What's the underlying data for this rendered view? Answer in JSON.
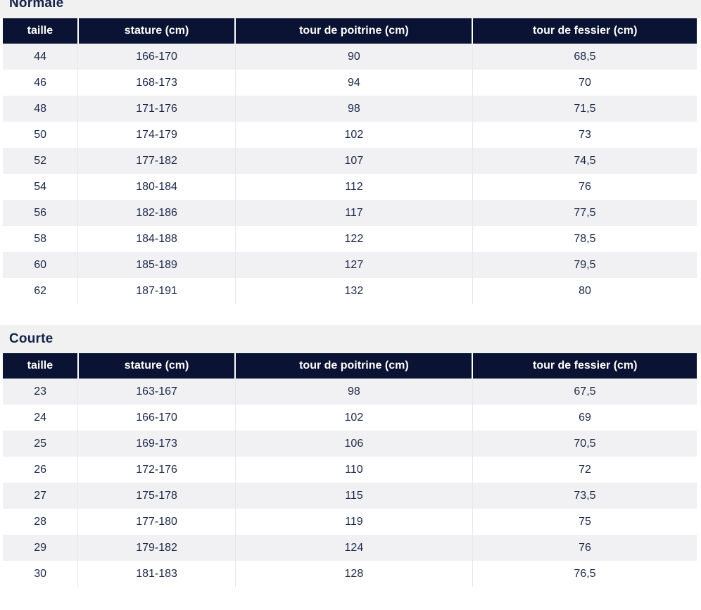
{
  "colors": {
    "header_bg": "#0a1333",
    "header_text": "#ffffff",
    "body_text": "#1c2749",
    "zebra_row_bg": "#f1f1f3",
    "title_band_bg": "#f1f1f2",
    "title_text": "#13234a",
    "cell_border": "#e7e7ea"
  },
  "tables": [
    {
      "title": "Normale",
      "headers": [
        "taille",
        "stature (cm)",
        "tour de poitrine (cm)",
        "tour de fessier (cm)"
      ],
      "rows": [
        [
          "44",
          "166-170",
          "90",
          "68,5"
        ],
        [
          "46",
          "168-173",
          "94",
          "70"
        ],
        [
          "48",
          "171-176",
          "98",
          "71,5"
        ],
        [
          "50",
          "174-179",
          "102",
          "73"
        ],
        [
          "52",
          "177-182",
          "107",
          "74,5"
        ],
        [
          "54",
          "180-184",
          "112",
          "76"
        ],
        [
          "56",
          "182-186",
          "117",
          "77,5"
        ],
        [
          "58",
          "184-188",
          "122",
          "78,5"
        ],
        [
          "60",
          "185-189",
          "127",
          "79,5"
        ],
        [
          "62",
          "187-191",
          "132",
          "80"
        ]
      ]
    },
    {
      "title": "Courte",
      "headers": [
        "taille",
        "stature (cm)",
        "tour de poitrine (cm)",
        "tour de fessier (cm)"
      ],
      "rows": [
        [
          "23",
          "163-167",
          "98",
          "67,5"
        ],
        [
          "24",
          "166-170",
          "102",
          "69"
        ],
        [
          "25",
          "169-173",
          "106",
          "70,5"
        ],
        [
          "26",
          "172-176",
          "110",
          "72"
        ],
        [
          "27",
          "175-178",
          "115",
          "73,5"
        ],
        [
          "28",
          "177-180",
          "119",
          "75"
        ],
        [
          "29",
          "179-182",
          "124",
          "76"
        ],
        [
          "30",
          "181-183",
          "128",
          "76,5"
        ]
      ]
    }
  ]
}
